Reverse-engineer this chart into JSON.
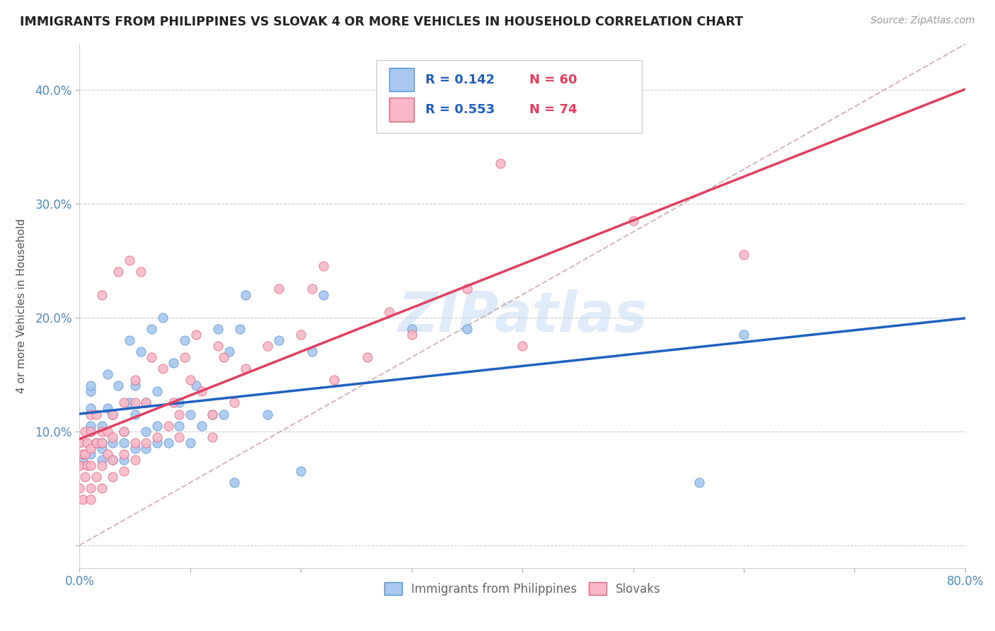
{
  "title": "IMMIGRANTS FROM PHILIPPINES VS SLOVAK 4 OR MORE VEHICLES IN HOUSEHOLD CORRELATION CHART",
  "source_text": "Source: ZipAtlas.com",
  "ylabel": "4 or more Vehicles in Household",
  "xlim": [
    0.0,
    0.8
  ],
  "ylim": [
    -0.02,
    0.44
  ],
  "x_ticks": [
    0.0,
    0.1,
    0.2,
    0.3,
    0.4,
    0.5,
    0.6,
    0.7,
    0.8
  ],
  "x_tick_labels": [
    "0.0%",
    "",
    "",
    "",
    "",
    "",
    "",
    "",
    "80.0%"
  ],
  "y_ticks": [
    0.0,
    0.1,
    0.2,
    0.3,
    0.4
  ],
  "y_tick_labels": [
    "",
    "10.0%",
    "20.0%",
    "30.0%",
    "40.0%"
  ],
  "grid_color": "#c8c8c8",
  "background_color": "#ffffff",
  "watermark": "ZIPatlas",
  "series": [
    {
      "name": "Immigrants from Philippines",
      "R": 0.142,
      "N": 60,
      "color": "#a8c8f0",
      "edge_color": "#5090d0",
      "trendline_color": "#2060c0",
      "x": [
        0.003,
        0.01,
        0.01,
        0.01,
        0.01,
        0.01,
        0.01,
        0.015,
        0.02,
        0.02,
        0.02,
        0.02,
        0.025,
        0.025,
        0.03,
        0.03,
        0.03,
        0.035,
        0.04,
        0.04,
        0.04,
        0.045,
        0.045,
        0.05,
        0.05,
        0.05,
        0.055,
        0.06,
        0.06,
        0.06,
        0.065,
        0.07,
        0.07,
        0.07,
        0.075,
        0.08,
        0.085,
        0.09,
        0.09,
        0.095,
        0.1,
        0.1,
        0.105,
        0.11,
        0.12,
        0.125,
        0.13,
        0.135,
        0.14,
        0.145,
        0.15,
        0.17,
        0.18,
        0.2,
        0.21,
        0.22,
        0.3,
        0.35,
        0.56,
        0.6
      ],
      "y": [
        0.075,
        0.08,
        0.1,
        0.105,
        0.12,
        0.135,
        0.14,
        0.09,
        0.075,
        0.085,
        0.09,
        0.105,
        0.12,
        0.15,
        0.075,
        0.09,
        0.115,
        0.14,
        0.075,
        0.09,
        0.1,
        0.125,
        0.18,
        0.085,
        0.115,
        0.14,
        0.17,
        0.085,
        0.1,
        0.125,
        0.19,
        0.09,
        0.105,
        0.135,
        0.2,
        0.09,
        0.16,
        0.105,
        0.125,
        0.18,
        0.09,
        0.115,
        0.14,
        0.105,
        0.115,
        0.19,
        0.115,
        0.17,
        0.055,
        0.19,
        0.22,
        0.115,
        0.18,
        0.065,
        0.17,
        0.22,
        0.19,
        0.19,
        0.055,
        0.185
      ]
    },
    {
      "name": "Slovaks",
      "R": 0.553,
      "N": 74,
      "color": "#f8b8c8",
      "edge_color": "#e06080",
      "trendline_color": "#e04060",
      "x": [
        0.0,
        0.0,
        0.0,
        0.003,
        0.003,
        0.005,
        0.005,
        0.005,
        0.007,
        0.007,
        0.01,
        0.01,
        0.01,
        0.01,
        0.01,
        0.01,
        0.015,
        0.015,
        0.015,
        0.02,
        0.02,
        0.02,
        0.02,
        0.02,
        0.025,
        0.025,
        0.03,
        0.03,
        0.03,
        0.03,
        0.035,
        0.04,
        0.04,
        0.04,
        0.04,
        0.045,
        0.05,
        0.05,
        0.05,
        0.05,
        0.055,
        0.06,
        0.06,
        0.065,
        0.07,
        0.075,
        0.08,
        0.085,
        0.09,
        0.09,
        0.095,
        0.1,
        0.105,
        0.11,
        0.12,
        0.12,
        0.125,
        0.13,
        0.14,
        0.15,
        0.17,
        0.18,
        0.2,
        0.21,
        0.22,
        0.23,
        0.26,
        0.28,
        0.3,
        0.35,
        0.38,
        0.4,
        0.5,
        0.6
      ],
      "y": [
        0.05,
        0.07,
        0.09,
        0.04,
        0.08,
        0.06,
        0.08,
        0.1,
        0.07,
        0.09,
        0.04,
        0.05,
        0.07,
        0.085,
        0.1,
        0.115,
        0.06,
        0.09,
        0.115,
        0.05,
        0.07,
        0.09,
        0.1,
        0.22,
        0.08,
        0.1,
        0.06,
        0.075,
        0.095,
        0.115,
        0.24,
        0.065,
        0.08,
        0.1,
        0.125,
        0.25,
        0.075,
        0.09,
        0.125,
        0.145,
        0.24,
        0.09,
        0.125,
        0.165,
        0.095,
        0.155,
        0.105,
        0.125,
        0.095,
        0.115,
        0.165,
        0.145,
        0.185,
        0.135,
        0.095,
        0.115,
        0.175,
        0.165,
        0.125,
        0.155,
        0.175,
        0.225,
        0.185,
        0.225,
        0.245,
        0.145,
        0.165,
        0.205,
        0.185,
        0.225,
        0.335,
        0.175,
        0.285,
        0.255
      ]
    }
  ],
  "trendline_dashed": {
    "color": "#c8a8a8",
    "x_start": 0.0,
    "x_end": 0.8,
    "y_start": 0.0,
    "y_end": 0.44
  },
  "legend_box": {
    "blue_color": "#a8c8f0",
    "blue_edge": "#5090d0",
    "pink_color": "#f8b8c8",
    "pink_edge": "#e06080",
    "R_color": "#2060c0",
    "N_color": "#e04060",
    "blue_R": "0.142",
    "blue_N": "60",
    "pink_R": "0.553",
    "pink_N": "74"
  },
  "bottom_legend": {
    "blue_label": "Immigrants from Philippines",
    "pink_label": "Slovaks",
    "label_color": "#666666"
  }
}
